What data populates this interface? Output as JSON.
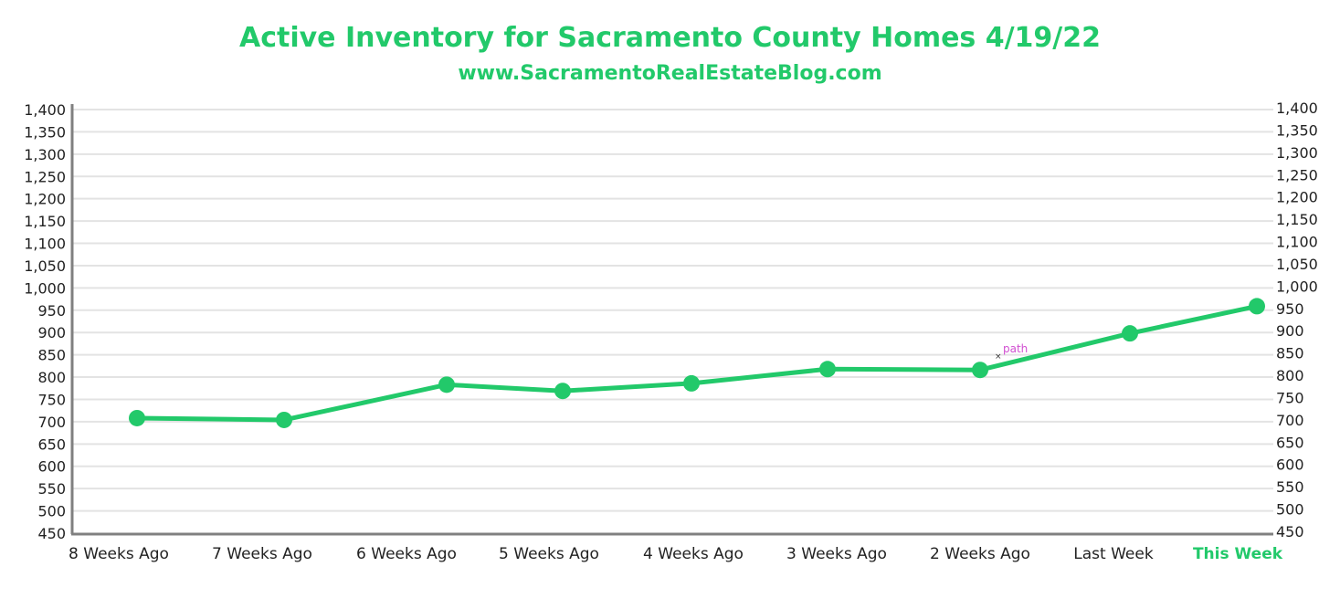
{
  "colors": {
    "accent": "#22c96a",
    "axis": "#808080",
    "grid": "#e3e3e3",
    "tick_text": "#222222",
    "annotation": "#d14fd1"
  },
  "chart_data": {
    "type": "line",
    "title": "Active Inventory for Sacramento County Homes 4/19/22",
    "subtitle": "www.SacramentoRealEstateBlog.com",
    "categories": [
      "8 Weeks Ago",
      "7 Weeks Ago",
      "6 Weeks Ago",
      "5 Weeks Ago",
      "4 Weeks Ago",
      "3 Weeks Ago",
      "2 Weeks Ago",
      "Last Week",
      "This Week"
    ],
    "highlighted_category": "This Week",
    "series": [
      {
        "values": [
          708,
          704,
          783,
          769,
          786,
          818,
          816,
          898,
          959
        ]
      }
    ],
    "ylim": [
      450,
      1400
    ],
    "left_ticks": [
      "1,400",
      "1,350",
      "1,300",
      "1,250",
      "1,200",
      "1,150",
      "1,100",
      "1,050",
      "1,000",
      "950",
      "900",
      "850",
      "800",
      "750",
      "700",
      "650",
      "600",
      "550",
      "500",
      "450"
    ],
    "right_ticks": [
      "1,400",
      "1,350",
      "1,300",
      "1,250",
      "1,200",
      "1,150",
      "1,100",
      "1,050",
      "1,000",
      "950",
      "900",
      "850",
      "800",
      "750",
      "700",
      "650",
      "600",
      "550",
      "500",
      "450"
    ],
    "annotation": {
      "text": "path",
      "near_category": "2 Weeks Ago"
    },
    "grid": true
  }
}
